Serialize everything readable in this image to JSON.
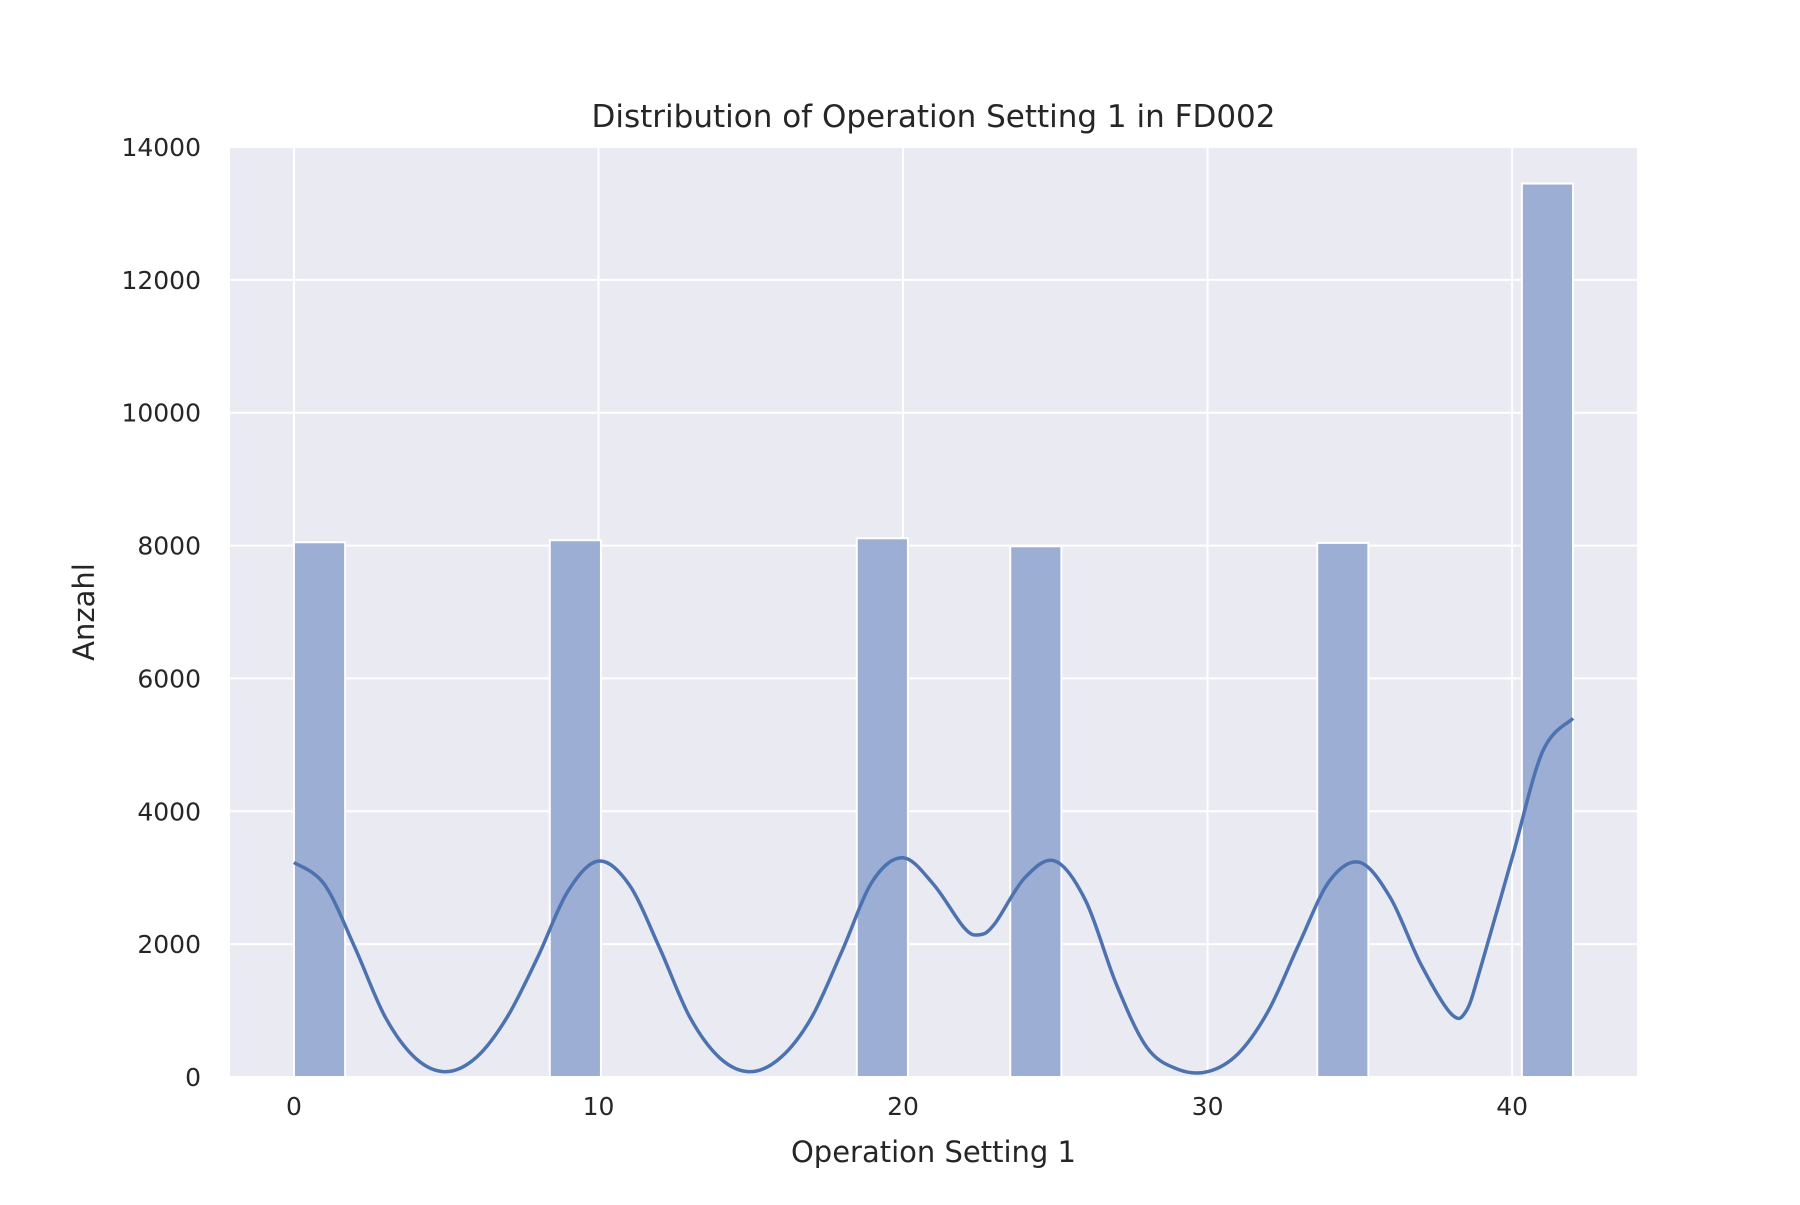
{
  "chart_data": {
    "type": "bar",
    "title": "Distribution of Operation Setting 1 in FD002",
    "xlabel": "Operation Setting 1",
    "ylabel": "Anzahl",
    "xlim": [
      -2.1,
      44.1
    ],
    "ylim": [
      0,
      14000
    ],
    "xticks": [
      0,
      10,
      20,
      30,
      40
    ],
    "yticks": [
      0,
      2000,
      4000,
      6000,
      8000,
      10000,
      12000,
      14000
    ],
    "grid": true,
    "bars": [
      {
        "x0": 0.0,
        "x1": 1.68,
        "value": 8050
      },
      {
        "x0": 8.4,
        "x1": 10.08,
        "value": 8080
      },
      {
        "x0": 18.48,
        "x1": 20.16,
        "value": 8110
      },
      {
        "x0": 23.52,
        "x1": 25.2,
        "value": 7990
      },
      {
        "x0": 33.6,
        "x1": 35.28,
        "value": 8040
      },
      {
        "x0": 40.32,
        "x1": 42.0,
        "value": 13450
      }
    ],
    "kde": {
      "x": [
        0,
        1,
        2,
        3,
        4,
        5,
        6,
        7,
        8,
        9,
        10,
        11,
        12,
        13,
        14,
        15,
        16,
        17,
        18,
        19,
        20,
        21,
        22,
        22.5,
        23,
        24,
        25,
        26,
        27,
        28,
        29,
        30,
        31,
        32,
        33,
        34,
        35,
        36,
        37,
        38,
        38.5,
        39,
        40,
        41,
        42
      ],
      "y": [
        3230,
        2900,
        1950,
        900,
        280,
        80,
        300,
        900,
        1800,
        2800,
        3250,
        2900,
        1950,
        900,
        280,
        80,
        300,
        900,
        1900,
        2950,
        3300,
        2900,
        2250,
        2140,
        2300,
        3000,
        3250,
        2650,
        1400,
        450,
        120,
        80,
        350,
        1000,
        2000,
        2950,
        3230,
        2700,
        1700,
        950,
        1000,
        1700,
        3300,
        4900,
        5400
      ]
    },
    "colors": {
      "background": "#eaeaf2",
      "grid": "#ffffff",
      "bar_fill": "#9daed4",
      "bar_edge": "#ffffff",
      "line": "#4c72b0"
    }
  }
}
